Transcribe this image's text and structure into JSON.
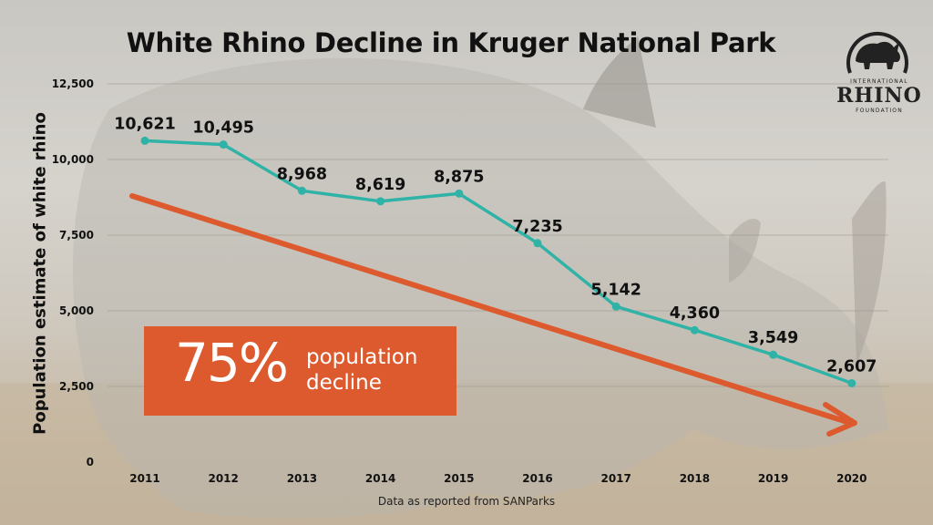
{
  "title": "White Rhino Decline in Kruger National Park",
  "logo": {
    "icon": "rhino-silhouette-icon",
    "top_text": "INTERNATIONAL",
    "main_text": "RHINO",
    "bottom_text": "FOUNDATION"
  },
  "callout": {
    "percent": "75%",
    "line1": "population",
    "line2": "decline"
  },
  "source_note": "Data as reported from SANParks",
  "colors": {
    "line": "#2fb3a6",
    "trend_arrow": "#dc5a2e",
    "callout_bg": "#dc5a2e",
    "text": "#111111"
  },
  "chart_data": {
    "type": "line",
    "title": "White Rhino Decline in Kruger National Park",
    "xlabel": "",
    "ylabel": "Population estimate of white rhino",
    "categories": [
      "2011",
      "2012",
      "2013",
      "2014",
      "2015",
      "2016",
      "2017",
      "2018",
      "2019",
      "2020"
    ],
    "series": [
      {
        "values": [
          10621,
          10495,
          8968,
          8619,
          8875,
          7235,
          5142,
          4360,
          3549,
          2607
        ],
        "data_labels": [
          "10,621",
          "10,495",
          "8,968",
          "8,619",
          "8,875",
          "7,235",
          "5,142",
          "4,360",
          "3,549",
          "2,607"
        ]
      }
    ],
    "ylim": [
      0,
      12500
    ],
    "yticks": [
      0,
      2500,
      5000,
      7500,
      10000,
      12500
    ],
    "ytick_labels": [
      "0",
      "2,500",
      "5,000",
      "7,500",
      "10,000",
      "12,500"
    ],
    "grid": true,
    "legend": "none",
    "annotations": [
      "75% population decline",
      "downward trend arrow"
    ]
  }
}
